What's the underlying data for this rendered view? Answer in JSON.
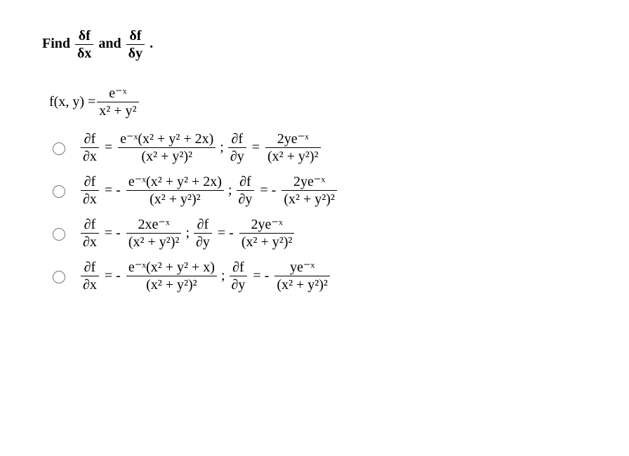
{
  "prompt": {
    "pre": "Find",
    "frac1_num": "δf",
    "frac1_den": "δx",
    "mid": "and",
    "frac2_num": "δf",
    "frac2_den": "δy",
    "post": "."
  },
  "fndef": {
    "lhs": "f(x, y) = ",
    "num": "e⁻ˣ",
    "den": "x² + y²"
  },
  "options": [
    {
      "dx": {
        "lhs_num": "∂f",
        "lhs_den": "∂x",
        "eq": "=",
        "rhs_num": "e⁻ˣ(x² + y² + 2x)",
        "rhs_den": "(x² + y²)²"
      },
      "dy": {
        "lhs_num": "∂f",
        "lhs_den": "∂y",
        "eq": "=",
        "rhs_num": "2ye⁻ˣ",
        "rhs_den": "(x² + y²)²"
      }
    },
    {
      "dx": {
        "lhs_num": "∂f",
        "lhs_den": "∂x",
        "eq": "=  -",
        "rhs_num": "e⁻ˣ(x² + y² + 2x)",
        "rhs_den": "(x² + y²)²"
      },
      "dy": {
        "lhs_num": "∂f",
        "lhs_den": "∂y",
        "eq": "=  -",
        "rhs_num": "2ye⁻ˣ",
        "rhs_den": "(x² + y²)²"
      }
    },
    {
      "dx": {
        "lhs_num": "∂f",
        "lhs_den": "∂x",
        "eq": "=  -",
        "rhs_num": "2xe⁻ˣ",
        "rhs_den": "(x² + y²)²"
      },
      "dy": {
        "lhs_num": "∂f",
        "lhs_den": "∂y",
        "eq": "=  -",
        "rhs_num": "2ye⁻ˣ",
        "rhs_den": "(x² + y²)²"
      }
    },
    {
      "dx": {
        "lhs_num": "∂f",
        "lhs_den": "∂x",
        "eq": "=  -",
        "rhs_num": "e⁻ˣ(x² + y² + x)",
        "rhs_den": "(x² + y²)²"
      },
      "dy": {
        "lhs_num": "∂f",
        "lhs_den": "∂y",
        "eq": "=  -",
        "rhs_num": "ye⁻ˣ",
        "rhs_den": "(x² + y²)²"
      }
    }
  ],
  "semi": ";"
}
